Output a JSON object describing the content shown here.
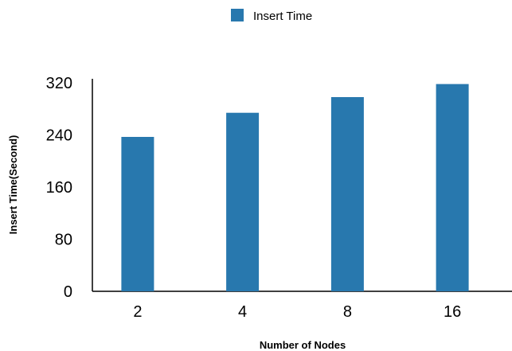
{
  "chart_data": {
    "type": "bar",
    "title": "",
    "categories": [
      "2",
      "4",
      "8",
      "16"
    ],
    "series": [
      {
        "name": "Insert Time",
        "values": [
          237,
          274,
          298,
          318
        ],
        "color": "#2878ae"
      }
    ],
    "xlabel": "Number of Nodes",
    "ylabel": "Insert Time(Second)",
    "ylim": [
      0,
      320
    ],
    "yticks": [
      0,
      80,
      160,
      240,
      320
    ],
    "ytick_labels": [
      "0",
      "80",
      "160",
      "240",
      "320"
    ],
    "grid": false,
    "legend_position": "top-center"
  }
}
